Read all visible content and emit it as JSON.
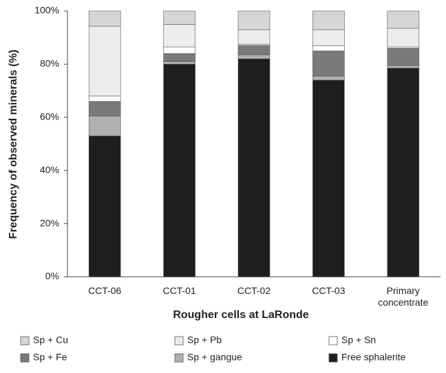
{
  "chart_data": {
    "type": "stacked_bar",
    "x_label": "Rougher cells at LaRonde",
    "y_label": "Frequency of  observed minerals (%)",
    "categories": [
      "CCT-06",
      "CCT-01",
      "CCT-02",
      "CCT-03",
      "Primary concentrate"
    ],
    "ylim": [
      0,
      100
    ],
    "yticks": [
      {
        "value": 0,
        "label": "0%"
      },
      {
        "value": 20,
        "label": "20%"
      },
      {
        "value": 40,
        "label": "40%"
      },
      {
        "value": 60,
        "label": "60%"
      },
      {
        "value": 80,
        "label": "80%"
      },
      {
        "value": 100,
        "label": "100%"
      }
    ],
    "series": [
      {
        "name": "Sp + Cu",
        "color": "#d6d6d6",
        "values": [
          5.7,
          5,
          7,
          7,
          6.5
        ]
      },
      {
        "name": "Sp + Pb",
        "color": "#ececec",
        "values": [
          26.3,
          8.5,
          5.5,
          6,
          7
        ]
      },
      {
        "name": "Sp + Sn",
        "color": "#ffffff",
        "values": [
          2,
          2.5,
          0.5,
          2,
          0.5
        ]
      },
      {
        "name": "Sp + Fe",
        "color": "#7a7a7a",
        "values": [
          5.5,
          3,
          3.5,
          9.5,
          6.5
        ]
      },
      {
        "name": "Sp + gangue",
        "color": "#b0b0b0",
        "values": [
          7.5,
          1,
          1.5,
          1.5,
          1
        ]
      },
      {
        "name": "Free sphalerite",
        "color": "#1e1e1e",
        "values": [
          53,
          80,
          82,
          74,
          78.5
        ]
      }
    ]
  }
}
